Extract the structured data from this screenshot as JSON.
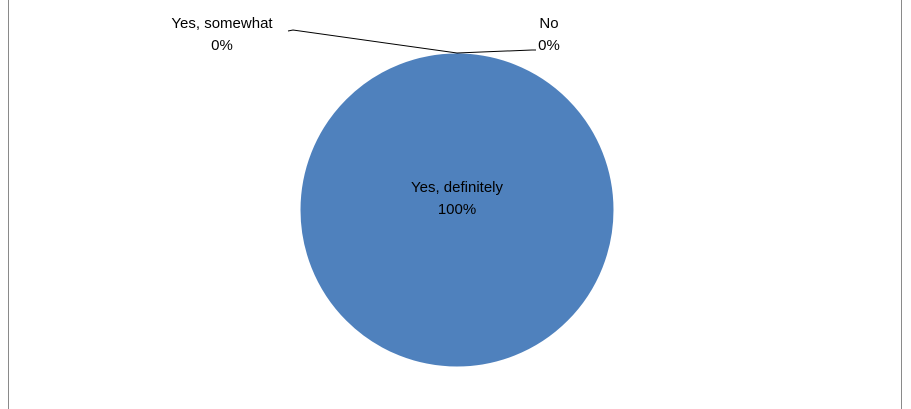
{
  "chart_data": {
    "type": "pie",
    "title": "",
    "categories": [
      "Yes, definitely",
      "Yes, somewhat",
      "No"
    ],
    "values": [
      100,
      0,
      0
    ],
    "labels": [
      {
        "name": "Yes, definitely",
        "percent": "100%"
      },
      {
        "name": "Yes, somewhat",
        "percent": "0%"
      },
      {
        "name": "No",
        "percent": "0%"
      }
    ],
    "colors": [
      "#4f81bd",
      "#c0504d",
      "#9bbb59"
    ],
    "legend": "none"
  }
}
